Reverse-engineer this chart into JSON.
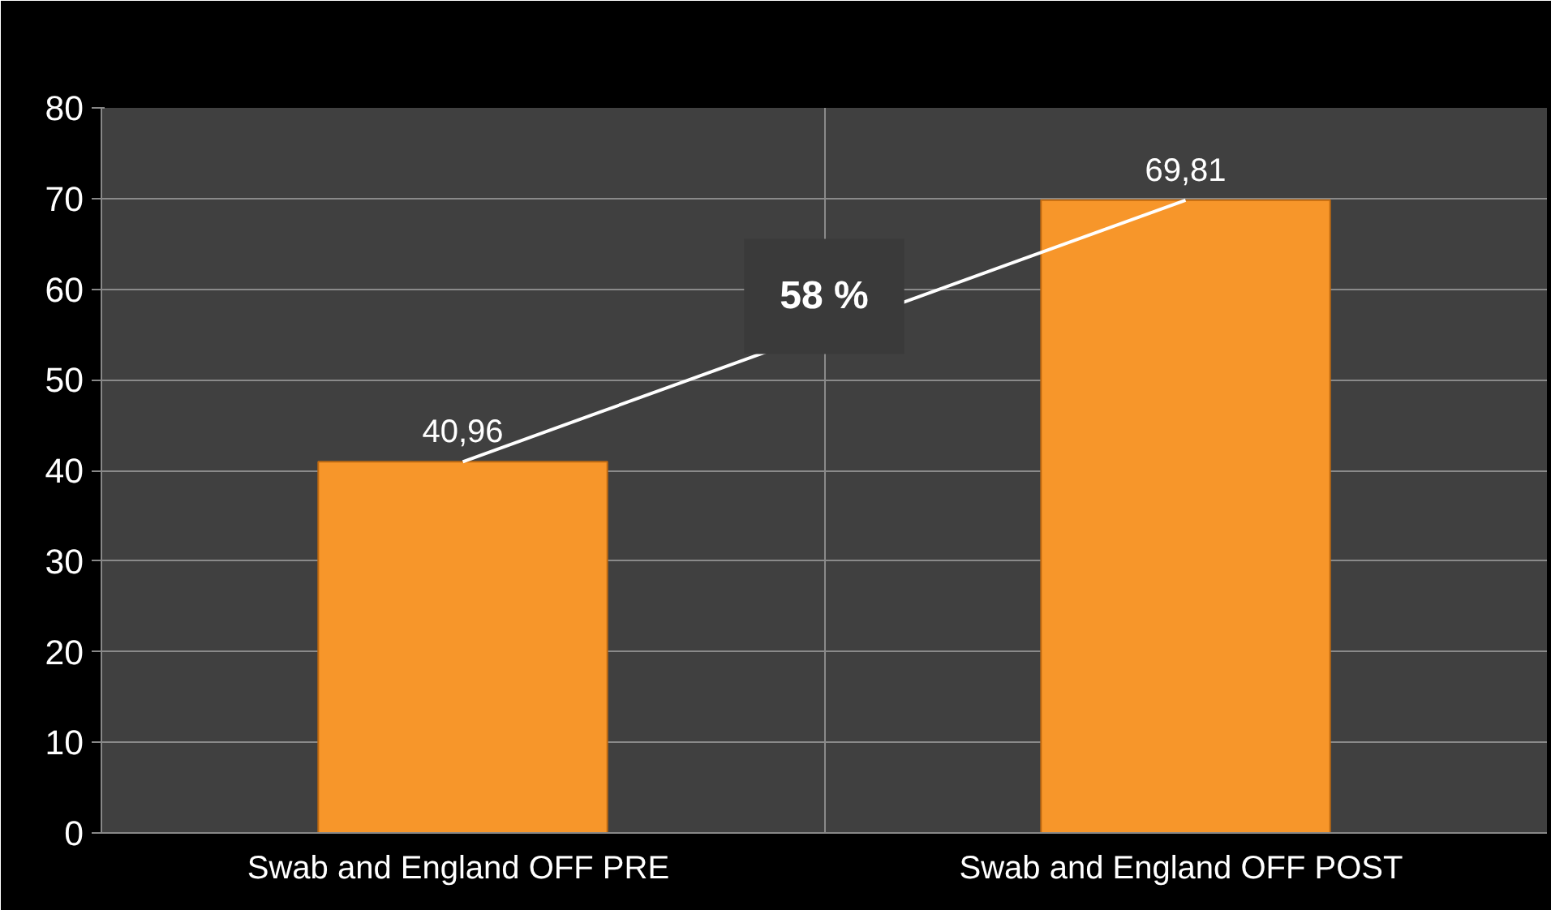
{
  "chart_data": {
    "type": "bar",
    "categories": [
      "Swab and England  OFF PRE",
      "Swab and England  OFF POST"
    ],
    "series": [
      {
        "color": "#f7962a",
        "values": [
          40.96,
          69.81
        ],
        "value_labels": [
          "40,96",
          "69,81"
        ]
      },
      {
        "type": "line",
        "color": "#ffffff",
        "values": [
          40.96,
          69.81
        ]
      }
    ],
    "annotations": [
      "58 %"
    ],
    "ylim": [
      0,
      80
    ],
    "yticks": [
      0,
      10,
      20,
      30,
      40,
      50,
      60,
      70,
      80
    ],
    "grid": true,
    "marker": "none",
    "line_style": "solid"
  }
}
